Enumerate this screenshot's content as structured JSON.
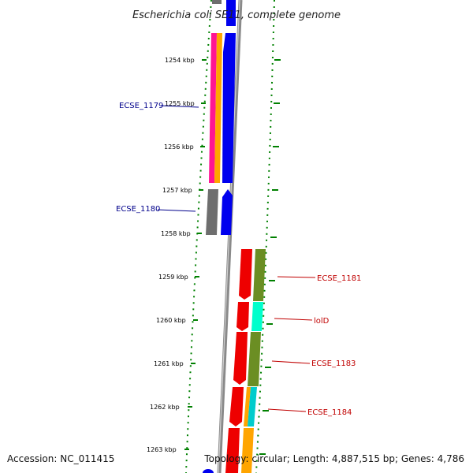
{
  "title": "Escherichia coli SE11, complete genome",
  "accession": "Accession: NC_011415",
  "topology": "Topology: circular; Length: 4,887,515 bp; Genes: 4,786",
  "ticks": [
    {
      "label": "1254 kbp"
    },
    {
      "label": "1255 kbp"
    },
    {
      "label": "1256 kbp"
    },
    {
      "label": "1257 kbp"
    },
    {
      "label": "1258 kbp"
    },
    {
      "label": "1259 kbp"
    },
    {
      "label": "1260 kbp"
    },
    {
      "label": "1261 kbp"
    },
    {
      "label": "1262 kbp"
    },
    {
      "label": "1263 kbp"
    }
  ],
  "gene_labels": {
    "ecse_1179": "ECSE_1179",
    "ecse_1180": "ECSE_1180",
    "ecse_1181": "ECSE_1181",
    "lolD": "lolD",
    "ecse_1183": "ECSE_1183",
    "ecse_1184": "ECSE_1184"
  },
  "colors": {
    "forward_cds": "#0000ee",
    "reverse_cds": "#ee0000",
    "gray_feature": "#6e6e6e",
    "pink_feature": "#ff1493",
    "orange_feature": "#ffa500",
    "olive_feature": "#6b8e23",
    "aqua_feature": "#00ffcc",
    "cyan_feature": "#00cccc",
    "backbone": "#8a8a8a",
    "dot_ring": "#008000",
    "left_label": "#00008b",
    "right_label": "#c00000"
  }
}
